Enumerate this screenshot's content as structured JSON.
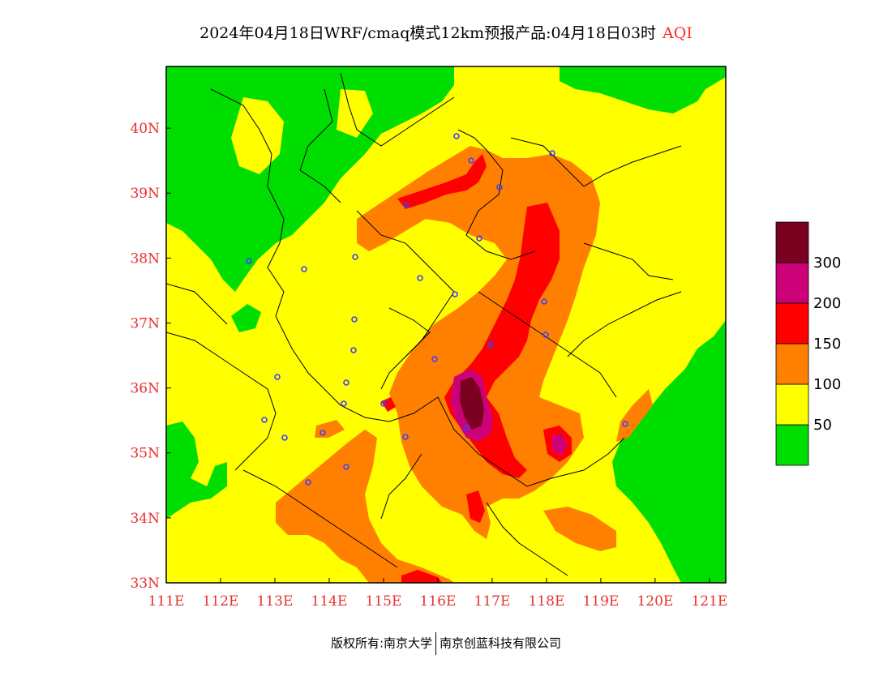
{
  "title": {
    "main": "2024年04月18日WRF/cmaq模式12km预报产品:04月18日03时",
    "variable": "AQI"
  },
  "map": {
    "lon_ticks": [
      "111E",
      "112E",
      "113E",
      "114E",
      "115E",
      "116E",
      "117E",
      "118E",
      "119E",
      "120E",
      "121E"
    ],
    "lat_ticks": [
      "33N",
      "34N",
      "35N",
      "36N",
      "37N",
      "38N",
      "39N",
      "40N"
    ],
    "extent": {
      "lon_min": 111,
      "lon_max": 121.3,
      "lat_min": 33,
      "lat_max": 40.95
    }
  },
  "legend": {
    "labels": [
      "50",
      "100",
      "150",
      "200",
      "300"
    ],
    "colors": [
      "#00dd00",
      "#ffff00",
      "#ff8000",
      "#ff0000",
      "#cc0077",
      "#7a0020"
    ]
  },
  "footer": {
    "copyright": "版权所有:南京大学",
    "company": "南京创蓝科技有限公司"
  }
}
